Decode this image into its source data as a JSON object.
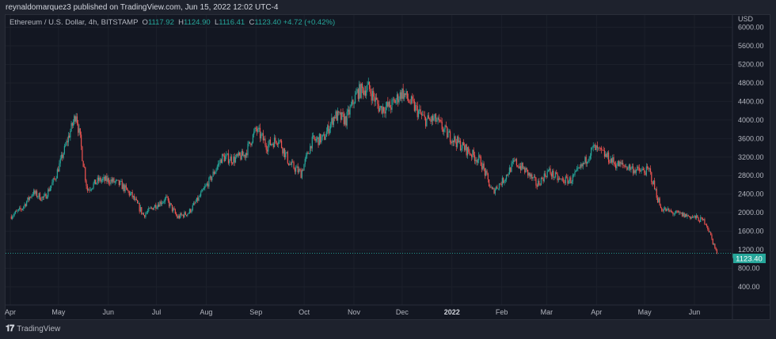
{
  "header": {
    "published": "reynaldomarquez3 published on TradingView.com, Jun 15, 2022 12:02 UTC-4"
  },
  "legend": {
    "symbol": "Ethereum / U.S. Dollar, 4h, BITSTAMP",
    "o_label": "O",
    "o": "1117.92",
    "h_label": "H",
    "h": "1124.90",
    "l_label": "L",
    "l": "1116.41",
    "c_label": "C",
    "c": "1123.40",
    "change": "+4.72 (+0.42%)"
  },
  "footer": {
    "brand": "TradingView"
  },
  "colors": {
    "up": "#26a69a",
    "down": "#ef5350",
    "background": "#131722",
    "grid": "#1c202b",
    "text": "#b2b5be"
  },
  "chart_data": {
    "type": "candlestick",
    "currency": "USD",
    "last_price": "1123.40",
    "ylim": [
      400,
      6000
    ],
    "y_ticks": [
      "400.00",
      "800.00",
      "1200.00",
      "1600.00",
      "2000.00",
      "2400.00",
      "2800.00",
      "3200.00",
      "3600.00",
      "4000.00",
      "4400.00",
      "4800.00",
      "5200.00",
      "5600.00",
      "6000.00"
    ],
    "x_ticks": [
      [
        "Apr",
        "2021-04-01"
      ],
      [
        "May",
        "2021-05-01"
      ],
      [
        "Jun",
        "2021-06-01"
      ],
      [
        "Jul",
        "2021-07-01"
      ],
      [
        "Aug",
        "2021-08-01"
      ],
      [
        "Sep",
        "2021-09-01"
      ],
      [
        "Oct",
        "2021-10-01"
      ],
      [
        "Nov",
        "2021-11-01"
      ],
      [
        "Dec",
        "2021-12-01"
      ],
      [
        "2022",
        "2022-01-01"
      ],
      [
        "Feb",
        "2022-02-01"
      ],
      [
        "Mar",
        "2022-03-01"
      ],
      [
        "Apr",
        "2022-04-01"
      ],
      [
        "May",
        "2022-05-01"
      ],
      [
        "Jun",
        "2022-06-01"
      ]
    ],
    "grid": true,
    "approx_weekly_close": [
      [
        "2021-04-01",
        1920
      ],
      [
        "2021-04-08",
        2080
      ],
      [
        "2021-04-15",
        2430
      ],
      [
        "2021-04-22",
        2300
      ],
      [
        "2021-04-29",
        2760
      ],
      [
        "2021-05-06",
        3500
      ],
      [
        "2021-05-12",
        4150
      ],
      [
        "2021-05-19",
        2500
      ],
      [
        "2021-05-26",
        2700
      ],
      [
        "2021-06-02",
        2700
      ],
      [
        "2021-06-09",
        2600
      ],
      [
        "2021-06-16",
        2350
      ],
      [
        "2021-06-23",
        1950
      ],
      [
        "2021-06-30",
        2150
      ],
      [
        "2021-07-07",
        2300
      ],
      [
        "2021-07-14",
        1900
      ],
      [
        "2021-07-21",
        2000
      ],
      [
        "2021-07-28",
        2350
      ],
      [
        "2021-08-04",
        2750
      ],
      [
        "2021-08-11",
        3200
      ],
      [
        "2021-08-18",
        3150
      ],
      [
        "2021-08-25",
        3250
      ],
      [
        "2021-09-01",
        3800
      ],
      [
        "2021-09-08",
        3450
      ],
      [
        "2021-09-15",
        3600
      ],
      [
        "2021-09-22",
        3050
      ],
      [
        "2021-09-29",
        2850
      ],
      [
        "2021-10-06",
        3550
      ],
      [
        "2021-10-13",
        3600
      ],
      [
        "2021-10-20",
        4100
      ],
      [
        "2021-10-27",
        4000
      ],
      [
        "2021-11-03",
        4600
      ],
      [
        "2021-11-10",
        4700
      ],
      [
        "2021-11-17",
        4250
      ],
      [
        "2021-11-24",
        4300
      ],
      [
        "2021-12-01",
        4600
      ],
      [
        "2021-12-08",
        4300
      ],
      [
        "2021-12-15",
        4000
      ],
      [
        "2021-12-22",
        4000
      ],
      [
        "2021-12-29",
        3700
      ],
      [
        "2022-01-05",
        3500
      ],
      [
        "2022-01-12",
        3300
      ],
      [
        "2022-01-19",
        3100
      ],
      [
        "2022-01-26",
        2450
      ],
      [
        "2022-02-02",
        2700
      ],
      [
        "2022-02-09",
        3100
      ],
      [
        "2022-02-16",
        2900
      ],
      [
        "2022-02-23",
        2600
      ],
      [
        "2022-03-02",
        2900
      ],
      [
        "2022-03-09",
        2700
      ],
      [
        "2022-03-16",
        2700
      ],
      [
        "2022-03-23",
        3000
      ],
      [
        "2022-03-30",
        3400
      ],
      [
        "2022-04-06",
        3250
      ],
      [
        "2022-04-13",
        3050
      ],
      [
        "2022-04-20",
        3000
      ],
      [
        "2022-04-27",
        2900
      ],
      [
        "2022-05-04",
        2900
      ],
      [
        "2022-05-11",
        2100
      ],
      [
        "2022-05-18",
        2000
      ],
      [
        "2022-05-25",
        1950
      ],
      [
        "2022-06-01",
        1900
      ],
      [
        "2022-06-08",
        1800
      ],
      [
        "2022-06-15",
        1123
      ]
    ]
  }
}
